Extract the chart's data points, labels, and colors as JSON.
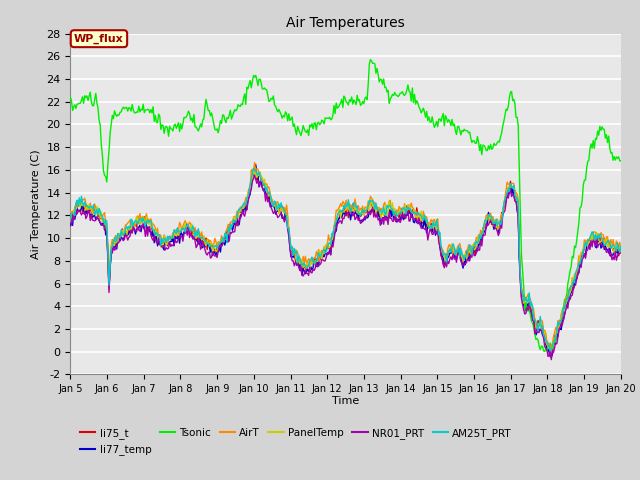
{
  "title": "Air Temperatures",
  "xlabel": "Time",
  "ylabel": "Air Temperature (C)",
  "ylim": [
    -2,
    28
  ],
  "yticks": [
    -2,
    0,
    2,
    4,
    6,
    8,
    10,
    12,
    14,
    16,
    18,
    20,
    22,
    24,
    26,
    28
  ],
  "x_start": 5,
  "x_end": 20,
  "x_ticks": [
    5,
    6,
    7,
    8,
    9,
    10,
    11,
    12,
    13,
    14,
    15,
    16,
    17,
    18,
    19,
    20
  ],
  "x_tick_labels": [
    "Jan 5",
    "Jan 6",
    "Jan 7",
    "Jan 8",
    "Jan 9",
    "Jan 10",
    "Jan 11",
    "Jan 12",
    "Jan 13",
    "Jan 14",
    "Jan 15",
    "Jan 16",
    "Jan 17",
    "Jan 18",
    "Jan 19",
    "Jan 20"
  ],
  "wp_flux_label": "WP_flux",
  "wp_flux_bg": "#ffffcc",
  "wp_flux_border": "#aa0000",
  "wp_flux_text_color": "#990000",
  "fig_bg_color": "#d4d4d4",
  "plot_bg_color": "#e8e8e8",
  "grid_color": "#ffffff",
  "series": [
    {
      "name": "li75_t",
      "color": "#dd0000",
      "lw": 1.0
    },
    {
      "name": "li77_temp",
      "color": "#0000cc",
      "lw": 1.0
    },
    {
      "name": "Tsonic",
      "color": "#00ee00",
      "lw": 1.0
    },
    {
      "name": "AirT",
      "color": "#ff8800",
      "lw": 1.0
    },
    {
      "name": "PanelTemp",
      "color": "#cccc00",
      "lw": 1.0
    },
    {
      "name": "NR01_PRT",
      "color": "#aa00aa",
      "lw": 1.0
    },
    {
      "name": "AM25T_PRT",
      "color": "#00cccc",
      "lw": 1.0
    }
  ],
  "n_points": 500,
  "base_keypoints_x": [
    5.0,
    5.2,
    5.5,
    5.8,
    6.0,
    6.05,
    6.1,
    6.3,
    6.5,
    6.7,
    7.0,
    7.3,
    7.5,
    7.8,
    8.0,
    8.2,
    8.5,
    8.7,
    9.0,
    9.2,
    9.4,
    9.6,
    9.8,
    10.0,
    10.1,
    10.2,
    10.3,
    10.5,
    10.7,
    10.9,
    11.0,
    11.1,
    11.2,
    11.3,
    11.5,
    11.7,
    11.9,
    12.0,
    12.1,
    12.15,
    12.2,
    12.3,
    12.5,
    12.7,
    12.9,
    13.0,
    13.1,
    13.2,
    13.3,
    13.5,
    13.7,
    13.9,
    14.0,
    14.2,
    14.4,
    14.6,
    14.8,
    15.0,
    15.1,
    15.2,
    15.3,
    15.4,
    15.5,
    15.6,
    15.7,
    15.8,
    16.0,
    16.1,
    16.2,
    16.3,
    16.4,
    16.5,
    16.7,
    16.9,
    17.0,
    17.1,
    17.2,
    17.25,
    17.3,
    17.4,
    17.5,
    17.6,
    17.65,
    17.7,
    17.8,
    17.9,
    18.0,
    18.05,
    18.1,
    18.2,
    18.3,
    18.4,
    18.5,
    18.6,
    18.8,
    19.0,
    19.2,
    19.4,
    19.6,
    19.8,
    20.0
  ],
  "base_keypoints_y": [
    11.5,
    13.0,
    12.5,
    12.0,
    11.0,
    5.5,
    9.0,
    10.0,
    10.5,
    11.0,
    11.5,
    10.5,
    9.5,
    10.0,
    10.5,
    11.0,
    10.0,
    9.5,
    9.0,
    10.0,
    11.0,
    12.0,
    13.0,
    16.0,
    15.5,
    15.0,
    14.5,
    13.0,
    12.5,
    12.0,
    9.0,
    8.5,
    8.0,
    7.5,
    7.5,
    8.0,
    8.5,
    9.0,
    9.5,
    10.0,
    11.0,
    12.0,
    12.5,
    12.5,
    12.0,
    12.0,
    12.5,
    13.0,
    12.5,
    12.0,
    12.5,
    12.0,
    12.0,
    12.5,
    12.0,
    11.5,
    11.0,
    11.0,
    9.0,
    8.0,
    8.5,
    9.0,
    8.5,
    9.0,
    8.0,
    8.5,
    9.0,
    9.5,
    10.0,
    11.0,
    12.0,
    11.5,
    11.0,
    14.0,
    14.5,
    14.0,
    13.0,
    7.0,
    5.0,
    4.0,
    4.5,
    3.5,
    2.5,
    2.0,
    2.5,
    1.5,
    0.5,
    0.2,
    0.0,
    1.0,
    2.0,
    3.0,
    4.0,
    5.0,
    7.0,
    9.0,
    10.0,
    10.0,
    9.5,
    9.0,
    9.0
  ],
  "tsonic_keypoints_x": [
    5.0,
    5.1,
    5.3,
    5.5,
    5.7,
    5.8,
    5.9,
    6.0,
    6.1,
    6.2,
    6.3,
    6.5,
    6.7,
    7.0,
    7.2,
    7.5,
    7.7,
    8.0,
    8.2,
    8.5,
    8.7,
    9.0,
    9.2,
    9.5,
    9.7,
    10.0,
    10.1,
    10.2,
    10.5,
    10.7,
    11.0,
    11.1,
    11.2,
    11.5,
    11.7,
    12.0,
    12.1,
    12.15,
    12.2,
    12.3,
    12.5,
    12.7,
    13.0,
    13.1,
    13.15,
    13.2,
    13.3,
    13.5,
    13.7,
    14.0,
    14.2,
    14.3,
    14.4,
    14.5,
    14.8,
    15.0,
    15.2,
    15.4,
    15.5,
    15.6,
    15.7,
    15.8,
    16.0,
    16.2,
    16.5,
    16.7,
    17.0,
    17.1,
    17.2,
    17.25,
    17.3,
    17.4,
    17.5,
    17.6,
    17.65,
    17.7,
    17.8,
    17.9,
    18.0,
    18.05,
    18.1,
    18.2,
    18.5,
    18.8,
    19.0,
    19.2,
    19.5,
    19.8,
    20.0
  ],
  "tsonic_keypoints_y": [
    22.0,
    21.5,
    22.0,
    22.5,
    22.0,
    20.0,
    16.0,
    15.0,
    20.0,
    21.0,
    21.0,
    21.5,
    21.0,
    21.5,
    21.0,
    20.0,
    19.5,
    20.0,
    21.0,
    19.5,
    21.5,
    19.5,
    20.5,
    21.0,
    22.0,
    24.5,
    24.0,
    23.5,
    22.0,
    21.0,
    20.5,
    20.0,
    19.5,
    19.5,
    20.0,
    20.5,
    20.5,
    21.0,
    21.5,
    22.0,
    22.0,
    22.0,
    22.0,
    22.5,
    25.5,
    26.0,
    25.0,
    23.5,
    22.5,
    22.5,
    23.0,
    22.5,
    22.0,
    21.5,
    20.5,
    20.0,
    20.5,
    20.0,
    19.5,
    20.0,
    19.0,
    19.5,
    18.5,
    18.0,
    18.0,
    18.5,
    23.0,
    22.0,
    20.0,
    14.0,
    8.0,
    4.0,
    3.5,
    2.5,
    1.5,
    1.0,
    0.5,
    0.2,
    0.0,
    0.1,
    0.0,
    1.0,
    5.0,
    10.0,
    15.0,
    18.0,
    20.0,
    17.0,
    17.0
  ]
}
